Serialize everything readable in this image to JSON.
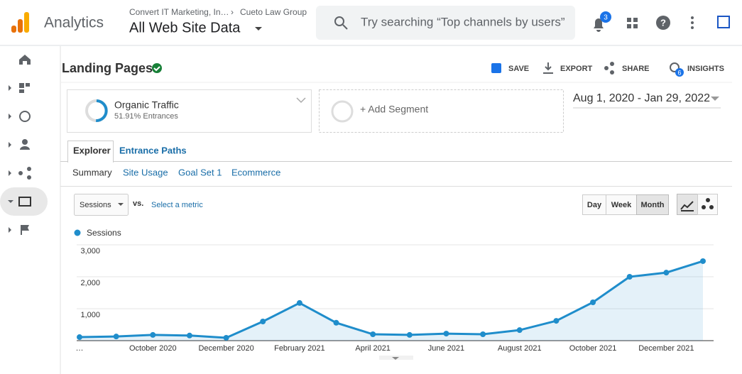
{
  "header": {
    "product": "Analytics",
    "breadcrumb": [
      "Convert IT Marketing, In…",
      "Cueto Law Group"
    ],
    "view": "All Web Site Data",
    "search_placeholder": "Try searching “Top channels by users”",
    "notification_count": 3
  },
  "report": {
    "title": "Landing Pages",
    "actions": [
      "SAVE",
      "EXPORT",
      "SHARE",
      "INSIGHTS"
    ],
    "insights_count": 6,
    "segment": {
      "name": "Organic Traffic",
      "detail": "51.91% Entrances"
    },
    "add_segment": "+ Add Segment",
    "date_range": "Aug 1, 2020 - Jan 29, 2022",
    "tabs": [
      "Explorer",
      "Entrance Paths"
    ],
    "subtabs": [
      "Summary",
      "Site Usage",
      "Goal Set 1",
      "Ecommerce"
    ],
    "metric_select": "Sessions",
    "vs": "vs.",
    "select_metric": "Select a metric",
    "granularity": [
      "Day",
      "Week",
      "Month"
    ]
  },
  "chart_data": {
    "type": "line",
    "categories": [
      "…",
      null,
      "October 2020",
      null,
      "December 2020",
      null,
      "February 2021",
      null,
      "April 2021",
      null,
      "June 2021",
      null,
      "August 2021",
      null,
      "October 2021",
      null,
      "December 2021",
      null
    ],
    "series": [
      {
        "name": "Sessions",
        "color": "#1f8dcb",
        "values": [
          110,
          130,
          180,
          160,
          90,
          600,
          1180,
          560,
          200,
          180,
          220,
          200,
          330,
          620,
          1200,
          2000,
          2130,
          2490
        ]
      }
    ],
    "ylim": [
      0,
      3000
    ],
    "yticks": [
      {
        "value": 1000,
        "label": "1,000"
      },
      {
        "value": 2000,
        "label": "2,000"
      },
      {
        "value": 3000,
        "label": "3,000"
      }
    ],
    "grid": true,
    "area": true
  }
}
